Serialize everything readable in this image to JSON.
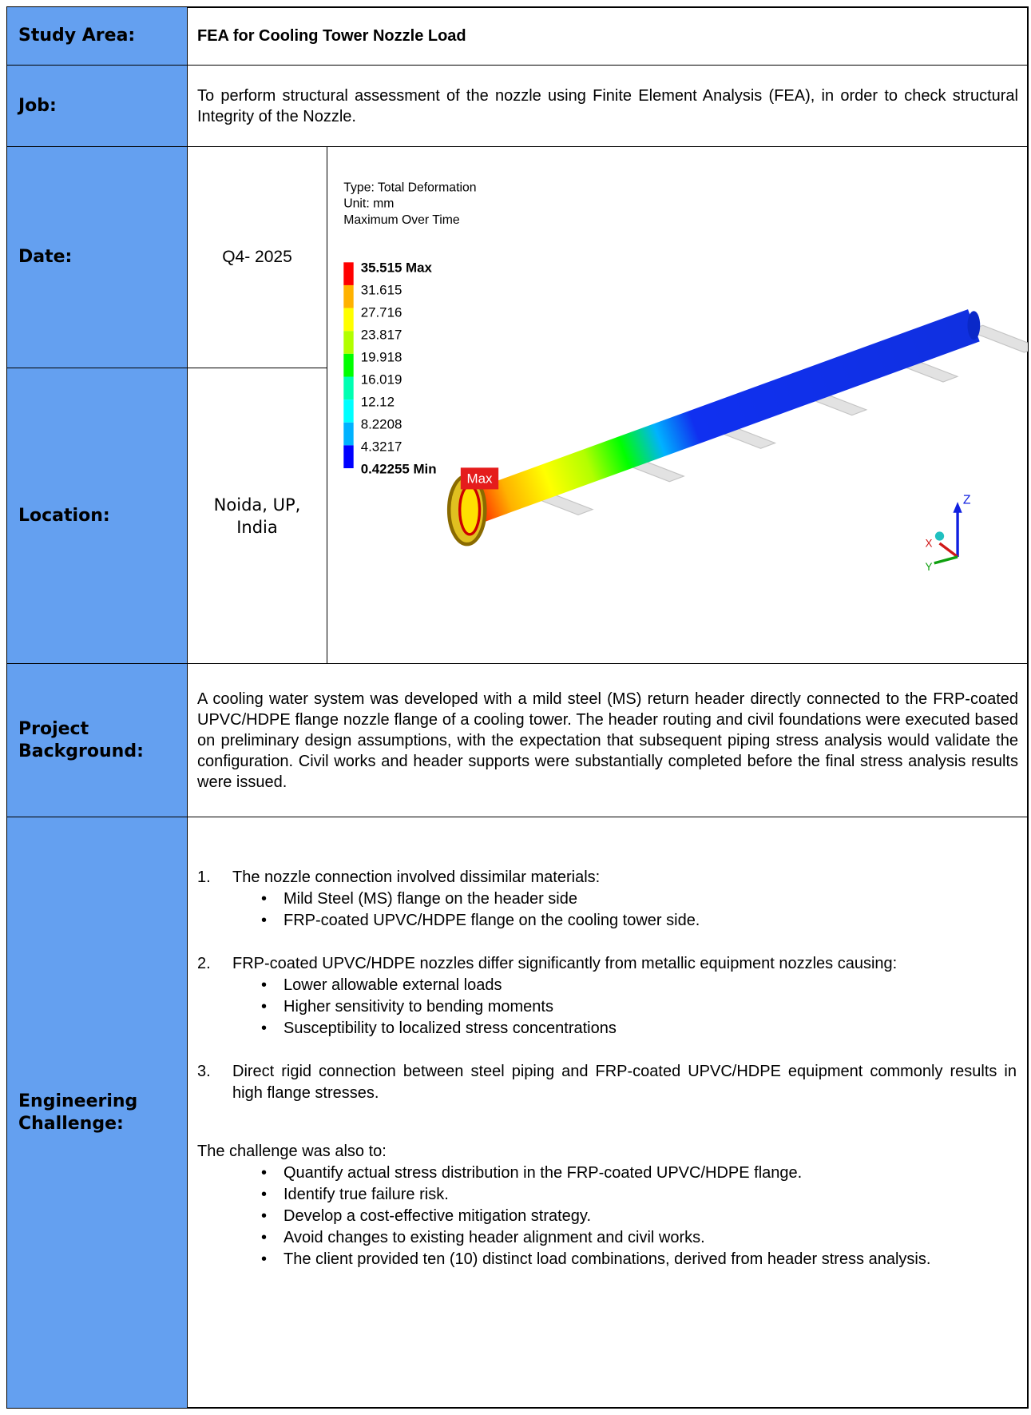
{
  "study_area": {
    "label": "Study Area:",
    "value": "FEA for Cooling Tower Nozzle Load"
  },
  "job": {
    "label": "Job:",
    "value": "To perform structural assessment of the nozzle using Finite Element Analysis (FEA), in order to check structural Integrity of the Nozzle."
  },
  "date": {
    "label": "Date:",
    "value": "Q4- 2025"
  },
  "location": {
    "label": "Location:",
    "value": "Noida, UP, India"
  },
  "figure": {
    "header": [
      "Type: Total Deformation",
      "Unit: mm",
      "Maximum Over Time"
    ],
    "legend": [
      "35.515 Max",
      "31.615",
      "27.716",
      "23.817",
      "19.918",
      "16.019",
      "12.12",
      "8.2208",
      "4.3217",
      "0.42255 Min"
    ],
    "max_tag": "Max",
    "axes": [
      "Z",
      "X",
      "Y"
    ]
  },
  "background": {
    "label": "Project Background:",
    "value": "A cooling water system was developed with a mild steel (MS) return header directly connected to the FRP-coated UPVC/HDPE flange nozzle flange of a cooling tower. The header routing and civil foundations were executed based on preliminary design assumptions, with the expectation that subsequent piping stress analysis would validate the configuration. Civil works and header supports were substantially completed before the final stress analysis results were issued."
  },
  "challenge": {
    "label": "Engineering Challenge:",
    "items": [
      {
        "number": "1.",
        "text": "The nozzle connection involved dissimilar materials:",
        "bullets": [
          "Mild Steel (MS) flange on the header side",
          "FRP-coated UPVC/HDPE flange on the cooling tower side."
        ]
      },
      {
        "number": "2.",
        "text": "FRP-coated UPVC/HDPE nozzles differ significantly from metallic equipment nozzles causing:",
        "bullets": [
          "Lower allowable external loads",
          "Higher sensitivity to bending moments",
          "Susceptibility to localized stress concentrations"
        ]
      },
      {
        "number": "3.",
        "text": "Direct rigid connection between steel piping and FRP-coated UPVC/HDPE equipment commonly results in high flange stresses.",
        "bullets": []
      }
    ],
    "intro": "The challenge was also to:",
    "bullets": [
      "Quantify actual stress distribution in the FRP-coated UPVC/HDPE flange.",
      "Identify true failure risk.",
      "Develop a cost-effective mitigation strategy.",
      "Avoid changes to existing header alignment and civil works.",
      "The client provided ten (10) distinct load combinations, derived from header stress analysis."
    ]
  }
}
